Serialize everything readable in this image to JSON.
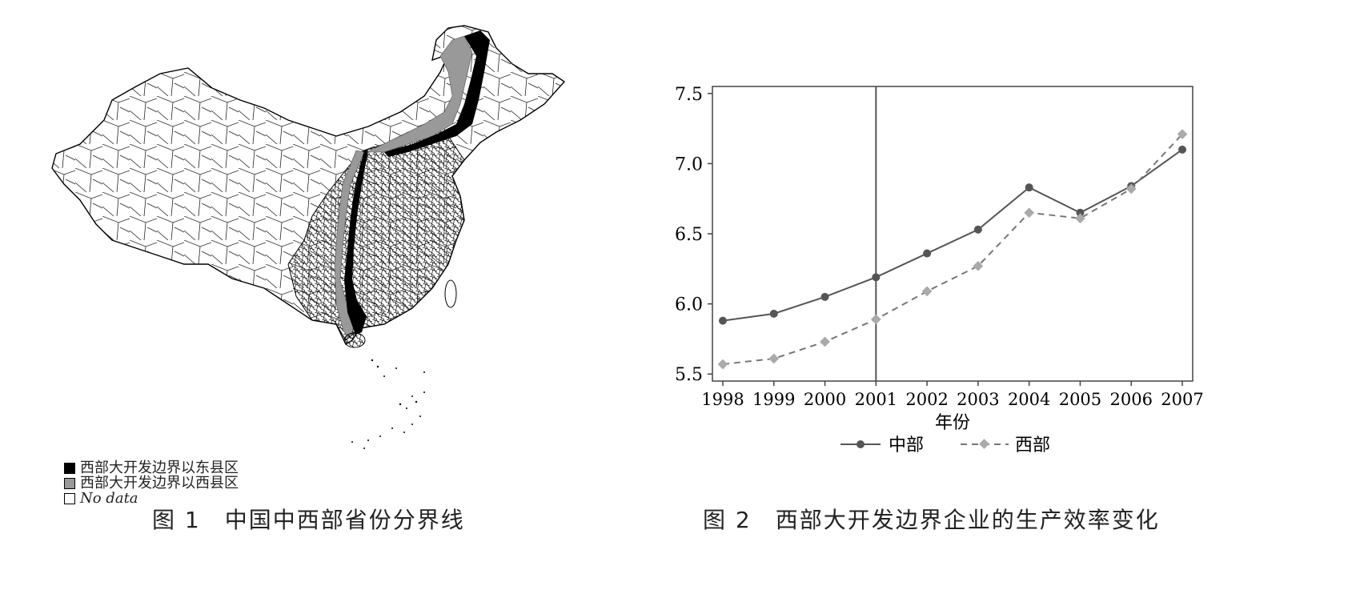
{
  "figure1": {
    "caption": "图 1　中国中西部省份分界线",
    "legend": [
      {
        "label": "西部大开发边界以东县区",
        "color": "#000000"
      },
      {
        "label": "西部大开发边界以西县区",
        "color": "#999999"
      },
      {
        "label": "No data",
        "color": "#ffffff"
      }
    ]
  },
  "figure2": {
    "caption": "图 2　西部大开发边界企业的生产效率变化"
  },
  "chart_data": {
    "type": "line",
    "title": "",
    "xlabel": "年份",
    "ylabel": "",
    "x": [
      "1998",
      "1999",
      "2000",
      "2001",
      "2002",
      "2003",
      "2004",
      "2005",
      "2006",
      "2007"
    ],
    "yticks": [
      "5.5",
      "6.0",
      "6.5",
      "7.0",
      "7.5"
    ],
    "ylim": [
      5.45,
      7.55
    ],
    "grid": false,
    "vline_x": "2001",
    "legend_position": "bottom",
    "series": [
      {
        "name": "中部",
        "color": "#555555",
        "style": "solid",
        "marker": "circle",
        "values": [
          5.88,
          5.93,
          6.05,
          6.19,
          6.36,
          6.53,
          6.83,
          6.65,
          6.84,
          7.1
        ]
      },
      {
        "name": "西部",
        "color": "#aaaaaa",
        "style": "dashed",
        "marker": "diamond",
        "values": [
          5.57,
          5.61,
          5.73,
          5.89,
          6.09,
          6.27,
          6.65,
          6.61,
          6.82,
          7.21
        ]
      }
    ]
  }
}
